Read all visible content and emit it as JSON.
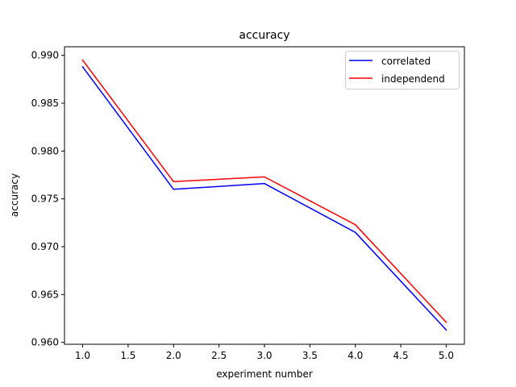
{
  "chart_data": {
    "type": "line",
    "title": "accuracy",
    "xlabel": "experiment number",
    "ylabel": "accuracy",
    "x": [
      1.0,
      2.0,
      3.0,
      4.0,
      5.0
    ],
    "xlim": [
      0.8,
      5.2
    ],
    "ylim": [
      0.9598,
      0.9909
    ],
    "xticks": [
      1.0,
      1.5,
      2.0,
      2.5,
      3.0,
      3.5,
      4.0,
      4.5,
      5.0
    ],
    "xtick_labels": [
      "1.0",
      "1.5",
      "2.0",
      "2.5",
      "3.0",
      "3.5",
      "4.0",
      "4.5",
      "5.0"
    ],
    "yticks": [
      0.96,
      0.965,
      0.97,
      0.975,
      0.98,
      0.985,
      0.99
    ],
    "ytick_labels": [
      "0.960",
      "0.965",
      "0.970",
      "0.975",
      "0.980",
      "0.985",
      "0.990"
    ],
    "grid": false,
    "legend_position": "top-right",
    "series": [
      {
        "name": "correlated",
        "color": "#0000ff",
        "values": [
          0.9888,
          0.976,
          0.9766,
          0.9715,
          0.9613
        ]
      },
      {
        "name": "independend",
        "color": "#ff0000",
        "values": [
          0.9895,
          0.9768,
          0.9773,
          0.9723,
          0.9621
        ]
      }
    ]
  }
}
